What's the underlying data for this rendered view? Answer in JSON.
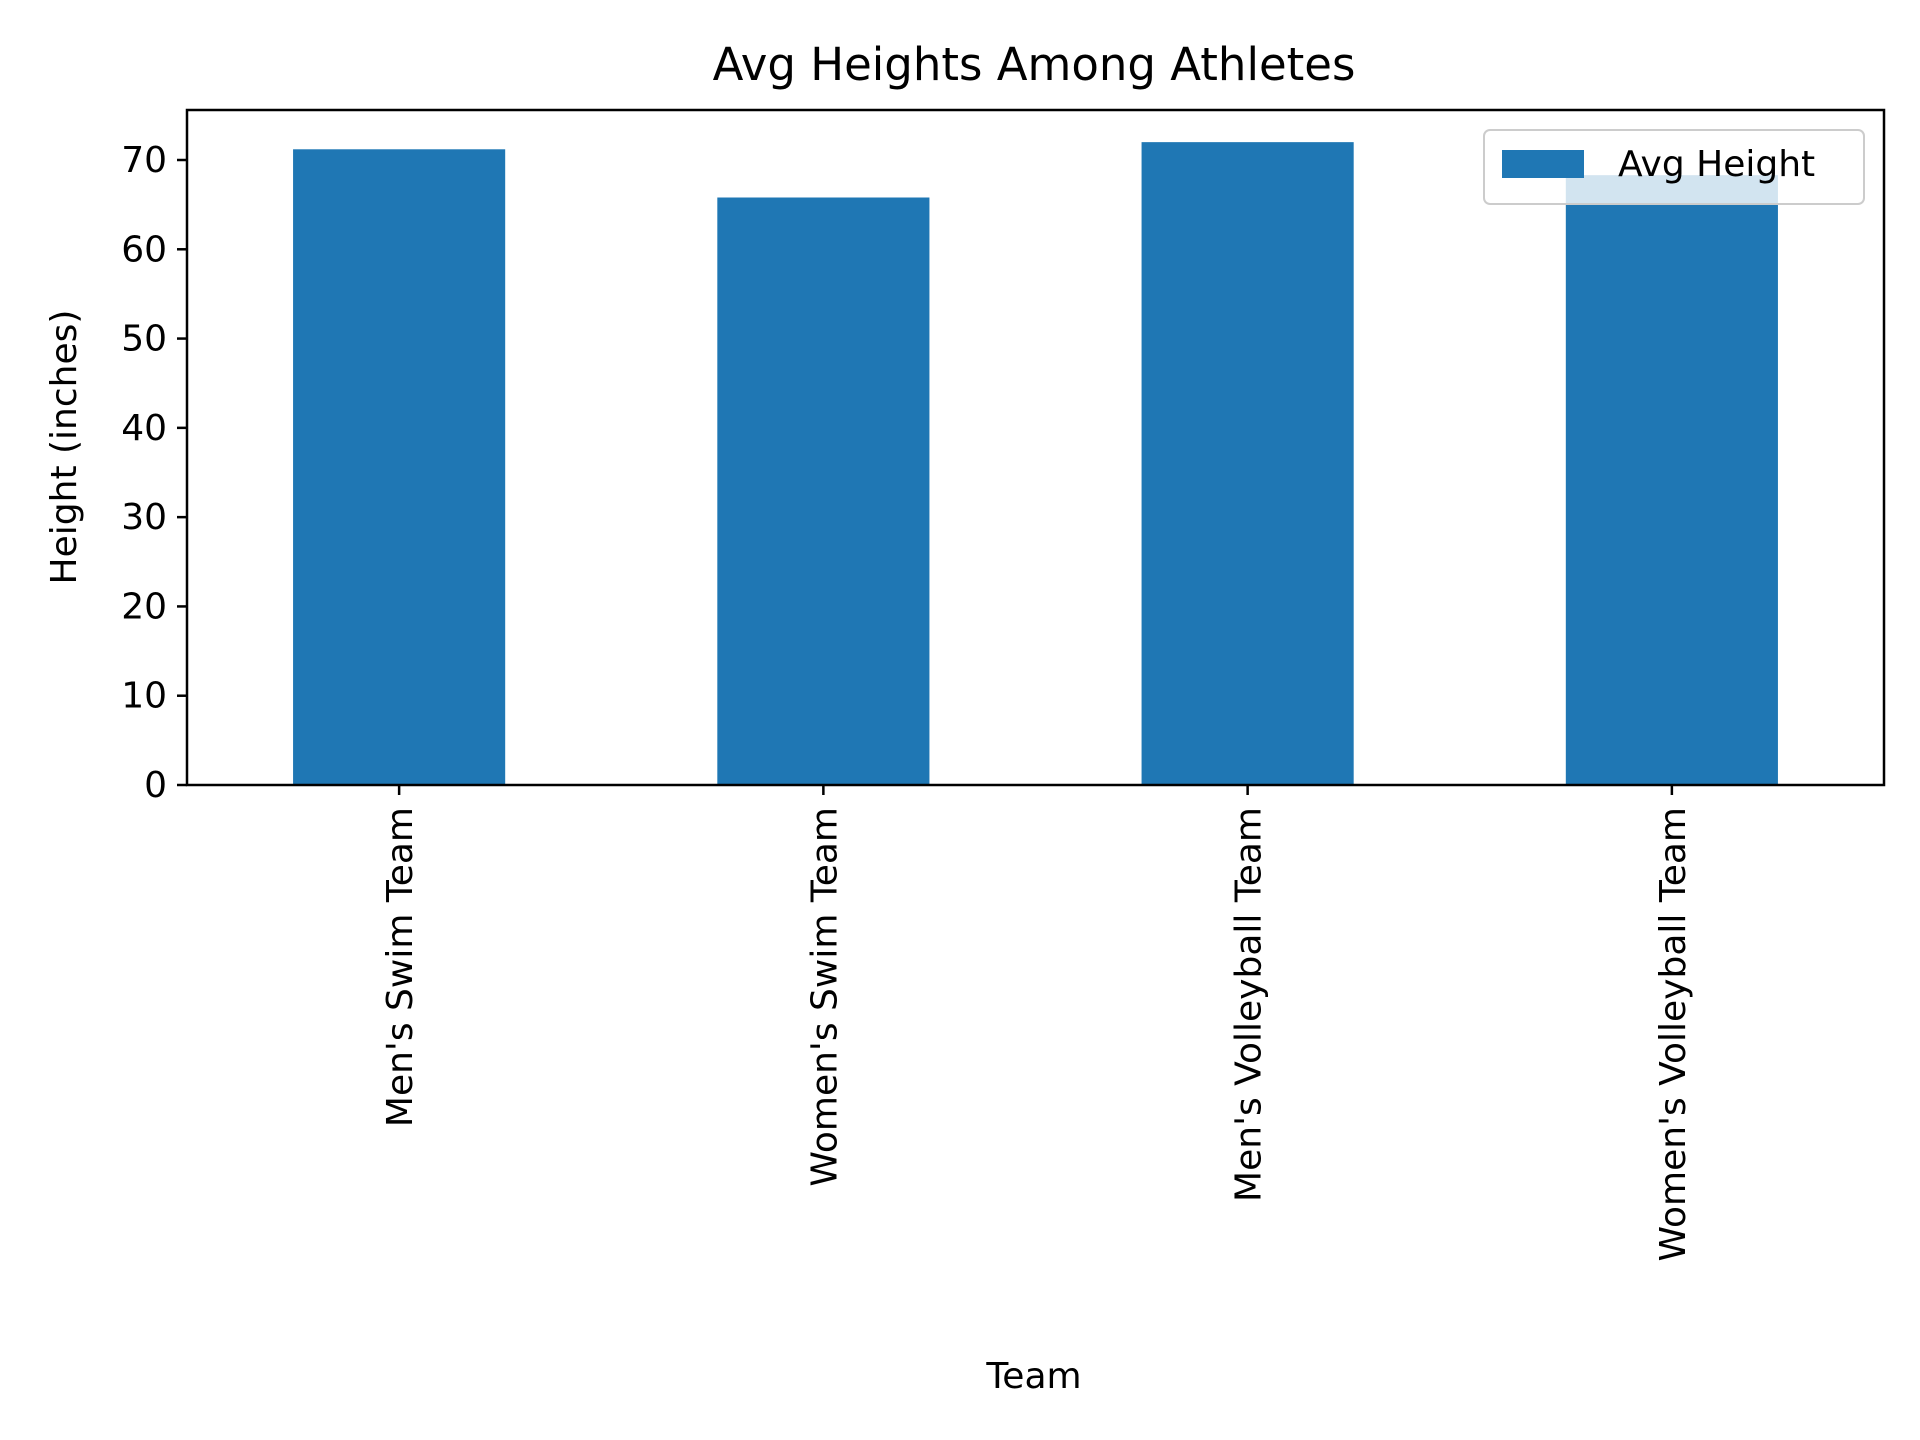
{
  "chart_data": {
    "type": "bar",
    "title": "Avg Heights Among Athletes",
    "xlabel": "Team",
    "ylabel": "Height (inches)",
    "categories": [
      "Men's Swim Team",
      "Women's Swim Team",
      "Men's Volleyball Team",
      "Women's Volleyball Team"
    ],
    "series": [
      {
        "name": "Avg Height",
        "values": [
          71.2,
          65.8,
          72.0,
          68.3
        ]
      }
    ],
    "ylim": [
      0,
      75.6
    ],
    "yticks": [
      0,
      10,
      20,
      30,
      40,
      50,
      60,
      70
    ],
    "legend_position": "top-right",
    "grid": false,
    "colors": {
      "bar": "#1f77b4"
    }
  }
}
